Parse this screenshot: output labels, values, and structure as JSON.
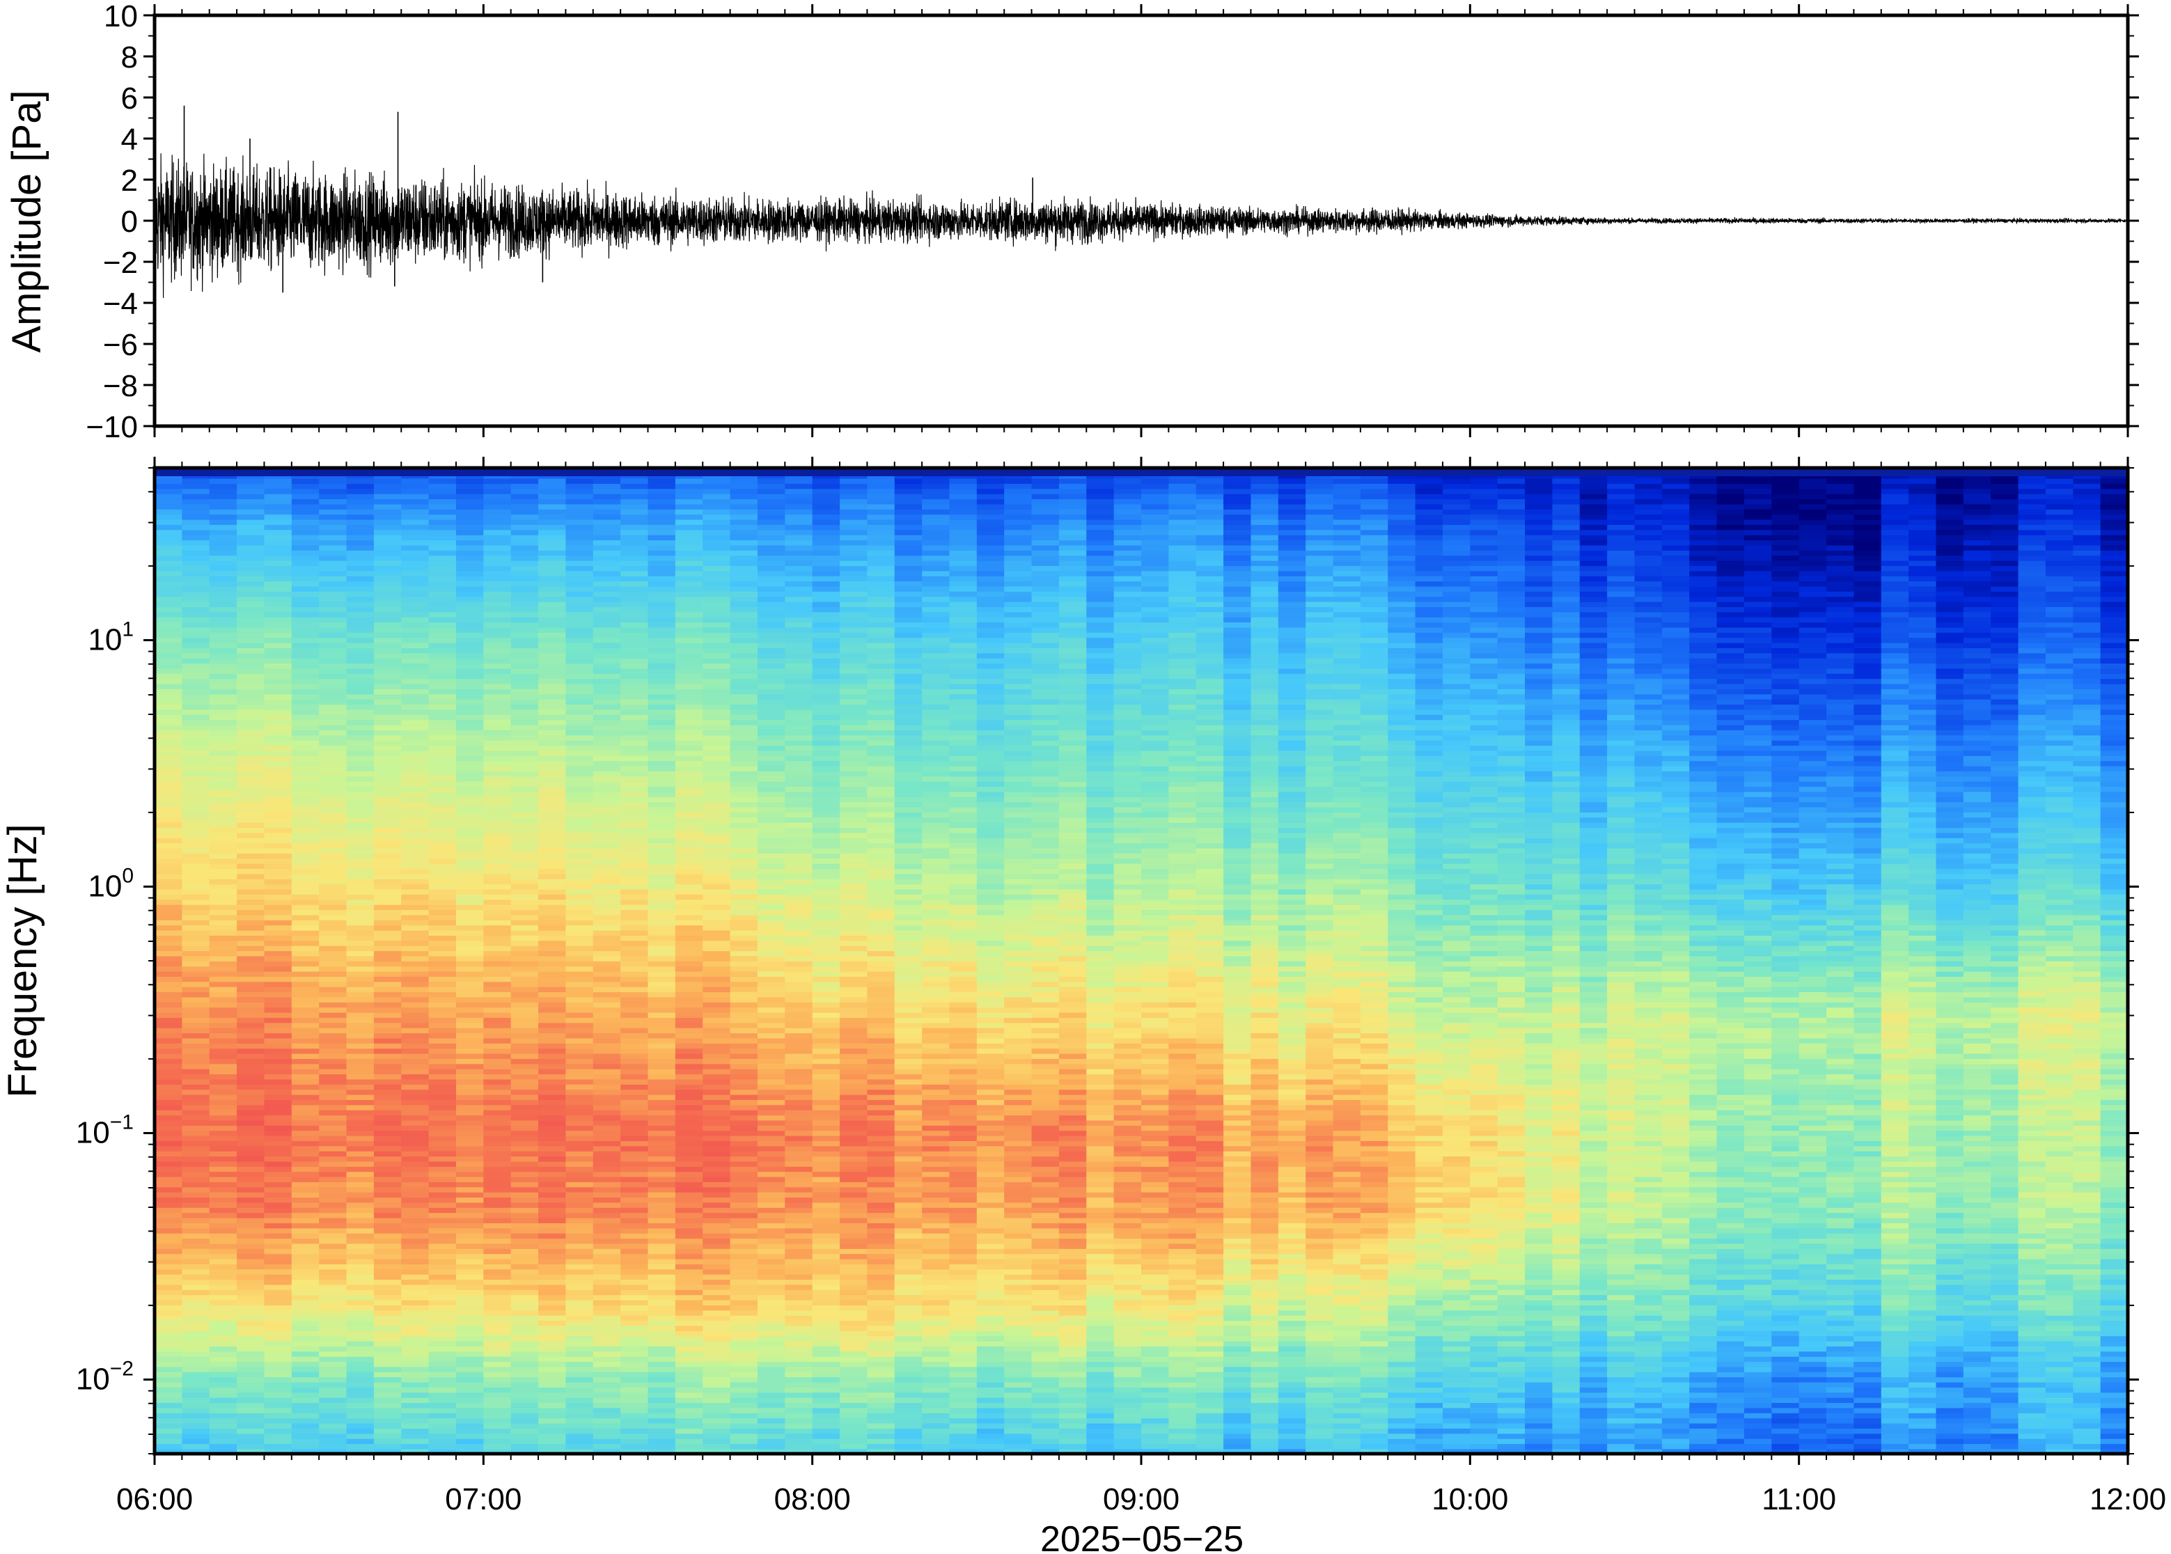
{
  "chart_data": [
    {
      "type": "line",
      "panel": "waveform",
      "ylabel": "Amplitude [Pa]",
      "ylim": [
        -10,
        10
      ],
      "y_ticks": [
        "10",
        "8",
        "6",
        "4",
        "2",
        "0",
        "−2",
        "−4",
        "−6",
        "−8",
        "−10"
      ],
      "y_tick_values": [
        10,
        8,
        6,
        4,
        2,
        0,
        -2,
        -4,
        -6,
        -8,
        -10
      ],
      "series": [
        {
          "color": "#000000",
          "x_hours": [
            6.0,
            6.25,
            6.5,
            6.75,
            7.0,
            7.25,
            7.5,
            7.75,
            8.0,
            8.25,
            8.5,
            8.75,
            9.0,
            9.25,
            9.5,
            9.75,
            10.0,
            10.25,
            10.5,
            10.75,
            11.0,
            11.25,
            11.5,
            11.75,
            12.0
          ],
          "envelope_max": [
            3.5,
            3.0,
            2.8,
            2.6,
            2.2,
            1.8,
            1.5,
            1.3,
            1.2,
            1.2,
            1.1,
            1.3,
            1.0,
            0.8,
            0.7,
            0.7,
            0.4,
            0.25,
            0.15,
            0.15,
            0.15,
            0.12,
            0.12,
            0.12,
            0.12
          ],
          "peaks": [
            {
              "x_hours": 6.09,
              "y": 5.6
            },
            {
              "x_hours": 6.29,
              "y": 4.0
            },
            {
              "x_hours": 6.39,
              "y": -3.5
            },
            {
              "x_hours": 6.74,
              "y": 5.3
            },
            {
              "x_hours": 6.73,
              "y": -3.2
            },
            {
              "x_hours": 7.18,
              "y": -3.0
            },
            {
              "x_hours": 8.67,
              "y": 2.1
            }
          ]
        }
      ]
    },
    {
      "type": "heatmap",
      "panel": "spectrogram",
      "ylabel": "Frequency [Hz]",
      "yscale": "log",
      "ylim": [
        0.005,
        50
      ],
      "y_ticks": [
        {
          "value": 10,
          "base": "10",
          "exp": "1"
        },
        {
          "value": 1,
          "base": "10",
          "exp": "0"
        },
        {
          "value": 0.1,
          "base": "10",
          "exp": "−1"
        },
        {
          "value": 0.01,
          "base": "10",
          "exp": "−2"
        }
      ],
      "colormap": "rainbow (blue = low power, red = high power)",
      "x_hours": [
        6.0,
        6.5,
        7.0,
        7.5,
        8.0,
        8.5,
        9.0,
        9.5,
        10.0,
        10.5,
        11.0,
        11.5,
        12.0
      ],
      "freq_hz": [
        0.005,
        0.01,
        0.02,
        0.05,
        0.1,
        0.3,
        1,
        3,
        10,
        30,
        50
      ],
      "relative_power_0_1": [
        [
          0.35,
          0.38,
          0.4,
          0.38,
          0.4,
          0.36,
          0.34,
          0.32,
          0.3,
          0.25,
          0.22,
          0.25,
          0.28
        ],
        [
          0.48,
          0.5,
          0.52,
          0.5,
          0.52,
          0.5,
          0.48,
          0.45,
          0.4,
          0.32,
          0.28,
          0.3,
          0.3
        ],
        [
          0.68,
          0.7,
          0.72,
          0.7,
          0.72,
          0.7,
          0.65,
          0.6,
          0.55,
          0.45,
          0.42,
          0.42,
          0.42
        ],
        [
          0.86,
          0.86,
          0.86,
          0.84,
          0.82,
          0.82,
          0.8,
          0.78,
          0.74,
          0.55,
          0.52,
          0.52,
          0.52
        ],
        [
          0.9,
          0.9,
          0.9,
          0.88,
          0.86,
          0.86,
          0.82,
          0.8,
          0.74,
          0.56,
          0.54,
          0.54,
          0.54
        ],
        [
          0.84,
          0.84,
          0.82,
          0.78,
          0.74,
          0.72,
          0.68,
          0.65,
          0.6,
          0.58,
          0.58,
          0.58,
          0.6
        ],
        [
          0.72,
          0.72,
          0.7,
          0.66,
          0.6,
          0.57,
          0.54,
          0.52,
          0.48,
          0.4,
          0.38,
          0.38,
          0.38
        ],
        [
          0.62,
          0.62,
          0.6,
          0.56,
          0.5,
          0.47,
          0.45,
          0.42,
          0.4,
          0.3,
          0.27,
          0.27,
          0.28
        ],
        [
          0.48,
          0.48,
          0.47,
          0.44,
          0.4,
          0.38,
          0.36,
          0.34,
          0.3,
          0.18,
          0.15,
          0.15,
          0.16
        ],
        [
          0.3,
          0.3,
          0.3,
          0.28,
          0.26,
          0.25,
          0.24,
          0.22,
          0.2,
          0.08,
          0.05,
          0.07,
          0.08
        ],
        [
          0.18,
          0.18,
          0.18,
          0.17,
          0.16,
          0.15,
          0.14,
          0.12,
          0.1,
          0.05,
          0.03,
          0.04,
          0.05
        ]
      ]
    }
  ],
  "x_axis": {
    "ticks": [
      "06:00",
      "07:00",
      "08:00",
      "09:00",
      "10:00",
      "11:00",
      "12:00"
    ],
    "tick_hours": [
      6,
      7,
      8,
      9,
      10,
      11,
      12
    ],
    "label": "2025−05−25",
    "xlim_hours": [
      6,
      12
    ]
  }
}
